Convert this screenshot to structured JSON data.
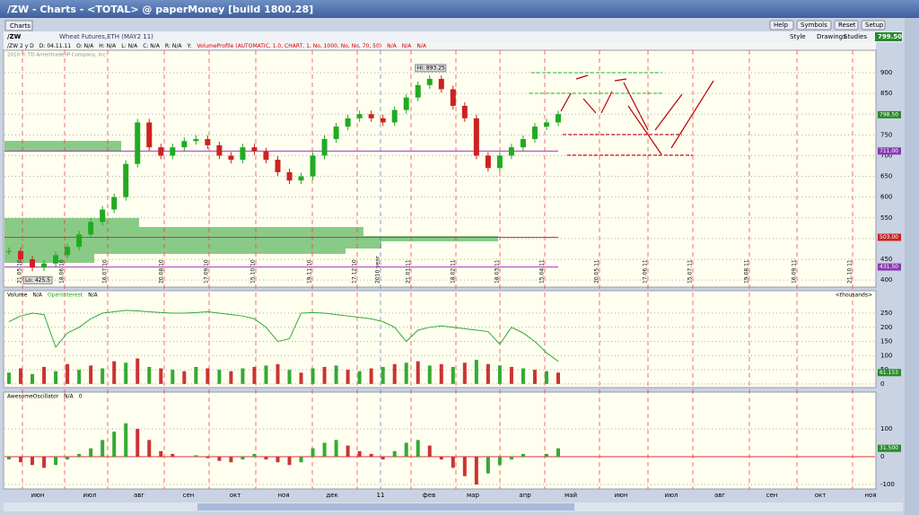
{
  "window": {
    "title": "/ZW - Charts - <TOTAL> @ paperMoney [build 1800.28]",
    "buttons": [
      "Help",
      "Symbols",
      "Reset",
      "Setup"
    ]
  },
  "tab": "Charts",
  "toolbar": {
    "symbol": "/ZW",
    "description": "Wheat Futures,ETH (MAY2 11)",
    "last": "799.50",
    "buttons": [
      "Style",
      "Drawings",
      "Studies"
    ]
  },
  "info": {
    "symbol": "/ZW 2 y D",
    "fields": [
      "D: 04.11.11",
      "O: N/A",
      "H: N/A",
      "L: N/A",
      "C: N/A",
      "R: N/A",
      "Y:"
    ],
    "study": "VolumeProfile (AUTOMATIC, 1.0, CHART, 1, No, 1000, No, No, 70, 50)",
    "study_values": [
      "N/A",
      "N/A",
      "N/A"
    ]
  },
  "copyright": "2010 © TD Ameritrade IP Company, Inc.",
  "price": {
    "ylim": [
      383,
      954
    ],
    "yticks": [
      400,
      450,
      500,
      550,
      600,
      650,
      700,
      750,
      800,
      850,
      900
    ],
    "closes": [
      470,
      450,
      430,
      440,
      460,
      480,
      510,
      540,
      570,
      600,
      680,
      780,
      720,
      700,
      720,
      735,
      740,
      725,
      700,
      690,
      720,
      710,
      690,
      660,
      640,
      650,
      700,
      740,
      770,
      790,
      800,
      790,
      780,
      810,
      840,
      870,
      885,
      860,
      820,
      790,
      700,
      670,
      700,
      720,
      740,
      770,
      780,
      800
    ],
    "hi_label": "Hi: 893.25",
    "lo_label": "Lo: 425.5",
    "price_labels": [
      {
        "value": 798.5,
        "label": "798.50"
      },
      {
        "value": 711,
        "label": "711.00"
      },
      {
        "value": 503,
        "label": "503.00"
      },
      {
        "value": 431.5,
        "label": "431.50"
      }
    ],
    "dates": [
      "21.05.10",
      "18.06.10",
      "16.07.10",
      "20.08.10",
      "17.09.10",
      "15.10.10",
      "19.11.10",
      "17.12.10",
      "2010 year",
      "21.01.11",
      "18.02.11",
      "18.03.11",
      "15.04.11",
      "20.05.11",
      "17.06.11",
      "15.07.11",
      "19.08.11",
      "16.09.11",
      "21.10.11"
    ]
  },
  "volume": {
    "legend": [
      "Volume",
      "N/A",
      "OpenInterest",
      "N/A"
    ],
    "unit": "<thousands>",
    "ylim": [
      -13,
      304
    ],
    "yticks": [
      0,
      50,
      100,
      150,
      200,
      250
    ],
    "volumes": [
      40,
      55,
      35,
      60,
      45,
      70,
      50,
      65,
      55,
      80,
      75,
      90,
      60,
      55,
      50,
      45,
      60,
      55,
      50,
      45,
      55,
      60,
      65,
      70,
      50,
      40,
      55,
      60,
      65,
      50,
      45,
      55,
      60,
      70,
      75,
      80,
      65,
      70,
      60,
      75,
      85,
      70,
      65,
      60,
      55,
      50,
      45,
      40
    ],
    "open_interest": [
      220,
      240,
      250,
      245,
      130,
      180,
      200,
      230,
      250,
      255,
      260,
      258,
      255,
      252,
      250,
      250,
      252,
      255,
      250,
      245,
      240,
      230,
      200,
      150,
      160,
      250,
      252,
      250,
      245,
      240,
      235,
      230,
      220,
      200,
      150,
      190,
      200,
      205,
      200,
      195,
      190,
      185,
      140,
      200,
      180,
      150,
      110,
      80
    ],
    "last_label": "61.153"
  },
  "oscillator": {
    "legend": [
      "AwesomeOscillator",
      "N/A",
      "0"
    ],
    "ylim": [
      -116,
      203
    ],
    "yticks": [
      -100,
      0,
      100
    ],
    "values": [
      -10,
      -20,
      -30,
      -40,
      -30,
      -10,
      10,
      30,
      60,
      90,
      120,
      100,
      60,
      20,
      10,
      0,
      5,
      -5,
      -15,
      -20,
      -10,
      10,
      -10,
      -20,
      -30,
      -20,
      30,
      50,
      60,
      40,
      20,
      10,
      -10,
      20,
      50,
      60,
      40,
      -10,
      -40,
      -70,
      -100,
      -60,
      -30,
      -10,
      10,
      0,
      10,
      30
    ],
    "last_label": "31.500"
  },
  "months": [
    "июн",
    "июл",
    "авг",
    "сен",
    "окт",
    "ноя",
    "дек",
    "11",
    "фев",
    "мар",
    "апр",
    "май",
    "июн",
    "июл",
    "авг",
    "сен",
    "окт",
    "ноя"
  ]
}
